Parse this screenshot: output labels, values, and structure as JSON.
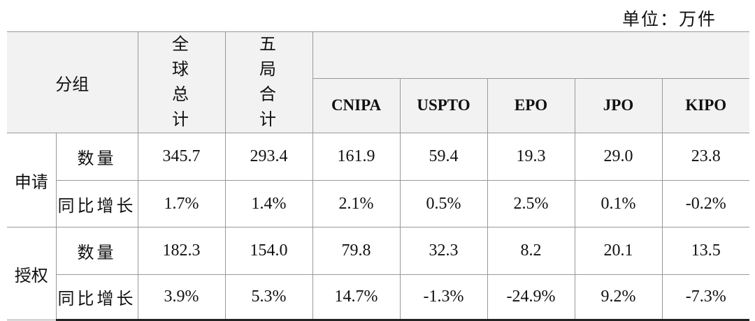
{
  "unit": "单位：万件",
  "table": {
    "header": {
      "group": "分组",
      "global": "全球总计",
      "five": "五局合计",
      "offices": [
        "CNIPA",
        "USPTO",
        "EPO",
        "JPO",
        "KIPO"
      ]
    },
    "groups": [
      {
        "label": "申请",
        "rows": [
          {
            "label": "数量",
            "values": [
              "345.7",
              "293.4",
              "161.9",
              "59.4",
              "19.3",
              "29.0",
              "23.8"
            ]
          },
          {
            "label": "同比增长",
            "values": [
              "1.7%",
              "1.4%",
              "2.1%",
              "0.5%",
              "2.5%",
              "0.1%",
              "-0.2%"
            ]
          }
        ]
      },
      {
        "label": "授权",
        "rows": [
          {
            "label": "数量",
            "values": [
              "182.3",
              "154.0",
              "79.8",
              "32.3",
              "8.2",
              "20.1",
              "13.5"
            ]
          },
          {
            "label": "同比增长",
            "values": [
              "3.9%",
              "5.3%",
              "14.7%",
              "-1.3%",
              "-24.9%",
              "9.2%",
              "-7.3%"
            ]
          }
        ]
      }
    ]
  }
}
